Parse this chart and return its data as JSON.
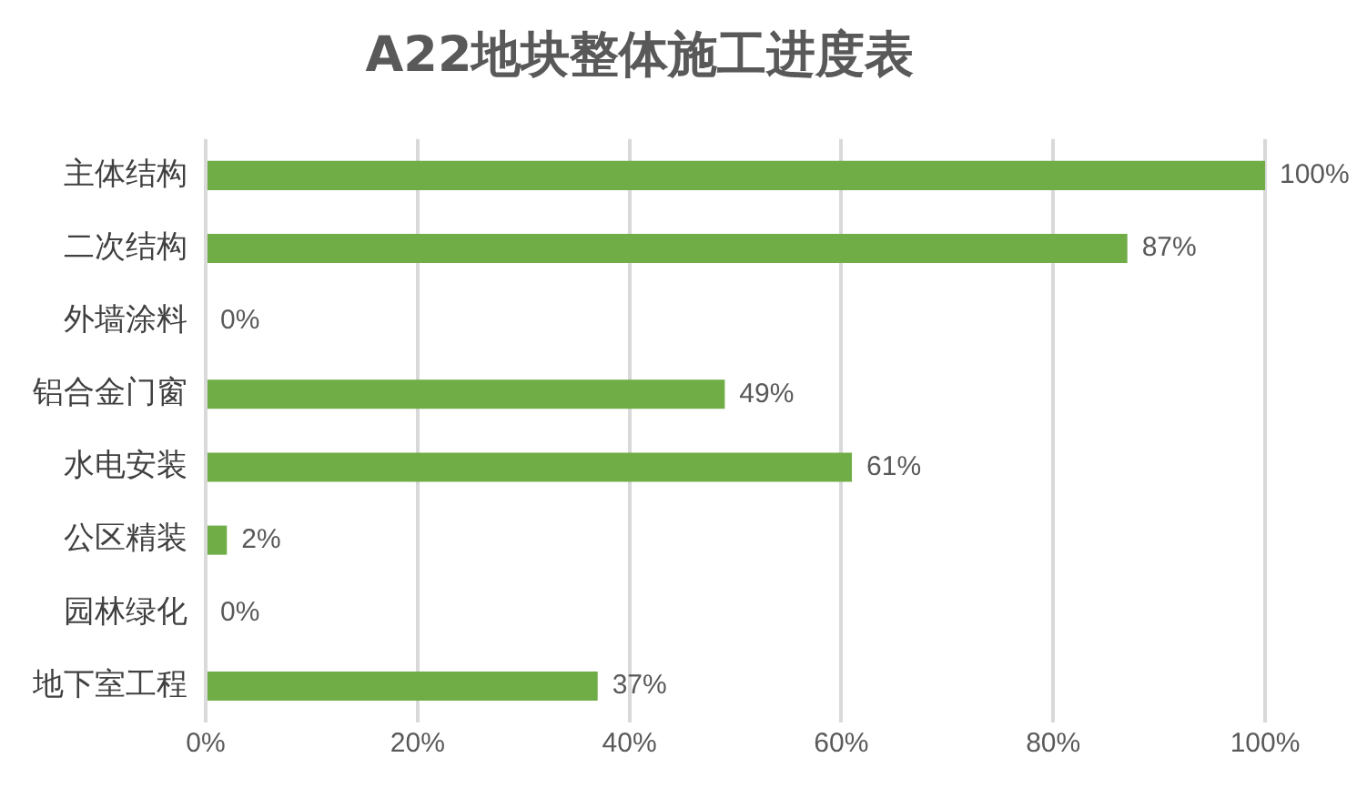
{
  "chart_data": {
    "type": "bar",
    "orientation": "horizontal",
    "title": "A22地块整体施工进度表",
    "categories": [
      "主体结构",
      "二次结构",
      "外墙涂料",
      "铝合金门窗",
      "水电安装",
      "公区精装",
      "园林绿化",
      "地下室工程"
    ],
    "values": [
      100,
      87,
      0,
      49,
      61,
      2,
      0,
      37
    ],
    "value_labels": [
      "100%",
      "87%",
      "0%",
      "49%",
      "61%",
      "2%",
      "0%",
      "37%"
    ],
    "color": "#70ad47",
    "xlim": [
      0,
      100
    ],
    "xticks": [
      {
        "value": 0,
        "label": "0%"
      },
      {
        "value": 20,
        "label": "20%"
      },
      {
        "value": 40,
        "label": "40%"
      },
      {
        "value": 60,
        "label": "60%"
      },
      {
        "value": 80,
        "label": "80%"
      },
      {
        "value": 100,
        "label": "100%"
      }
    ],
    "grid": "x",
    "legend": false
  }
}
